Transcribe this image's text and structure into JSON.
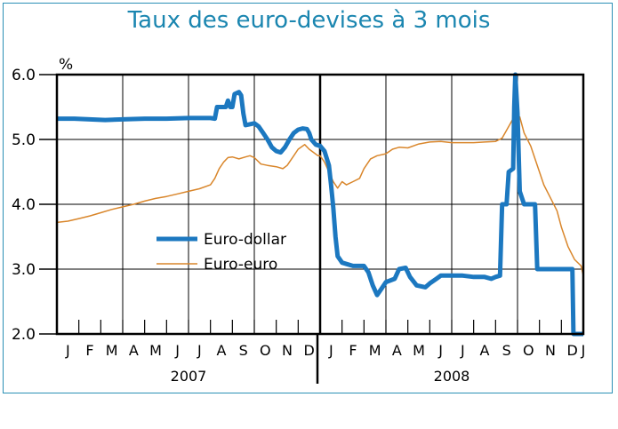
{
  "chart_data": {
    "type": "line",
    "title": "Taux des euro-devises à 3 mois",
    "unit": "%",
    "ylim": [
      2.0,
      6.0
    ],
    "yticks": [
      "2.0",
      "3.0",
      "4.0",
      "5.0",
      "6.0"
    ],
    "xlim": [
      0,
      24
    ],
    "months": [
      "J",
      "F",
      "M",
      "A",
      "M",
      "J",
      "J",
      "A",
      "S",
      "O",
      "N",
      "D",
      "J",
      "F",
      "M",
      "A",
      "M",
      "J",
      "J",
      "A",
      "S",
      "O",
      "N",
      "D",
      "J"
    ],
    "years": [
      "2007",
      "2008"
    ],
    "grid": true,
    "legend_position": "center-left",
    "series": [
      {
        "name": "Euro-dollar",
        "color": "#1c78c0",
        "points": [
          [
            0.0,
            5.32
          ],
          [
            0.8,
            5.32
          ],
          [
            1.5,
            5.31
          ],
          [
            2.2,
            5.3
          ],
          [
            3.0,
            5.31
          ],
          [
            4.0,
            5.32
          ],
          [
            5.0,
            5.32
          ],
          [
            6.0,
            5.33
          ],
          [
            7.0,
            5.33
          ],
          [
            7.2,
            5.32
          ],
          [
            7.3,
            5.5
          ],
          [
            7.7,
            5.5
          ],
          [
            7.8,
            5.6
          ],
          [
            7.9,
            5.5
          ],
          [
            8.0,
            5.5
          ],
          [
            8.1,
            5.7
          ],
          [
            8.3,
            5.73
          ],
          [
            8.4,
            5.68
          ],
          [
            8.5,
            5.4
          ],
          [
            8.6,
            5.22
          ],
          [
            9.0,
            5.25
          ],
          [
            9.2,
            5.2
          ],
          [
            9.4,
            5.1
          ],
          [
            9.6,
            5.0
          ],
          [
            9.8,
            4.88
          ],
          [
            10.0,
            4.82
          ],
          [
            10.2,
            4.8
          ],
          [
            10.4,
            4.88
          ],
          [
            10.6,
            5.0
          ],
          [
            10.8,
            5.1
          ],
          [
            11.0,
            5.15
          ],
          [
            11.2,
            5.17
          ],
          [
            11.4,
            5.16
          ],
          [
            11.5,
            5.1
          ],
          [
            11.6,
            5.0
          ],
          [
            11.8,
            4.92
          ],
          [
            12.0,
            4.9
          ],
          [
            12.2,
            4.82
          ],
          [
            12.4,
            4.6
          ],
          [
            12.5,
            4.3
          ],
          [
            12.6,
            3.95
          ],
          [
            12.7,
            3.5
          ],
          [
            12.8,
            3.2
          ],
          [
            13.0,
            3.1
          ],
          [
            13.2,
            3.08
          ],
          [
            13.5,
            3.05
          ],
          [
            14.0,
            3.05
          ],
          [
            14.2,
            2.95
          ],
          [
            14.4,
            2.75
          ],
          [
            14.6,
            2.6
          ],
          [
            14.8,
            2.7
          ],
          [
            15.0,
            2.8
          ],
          [
            15.4,
            2.85
          ],
          [
            15.6,
            3.0
          ],
          [
            15.9,
            3.02
          ],
          [
            16.1,
            2.88
          ],
          [
            16.4,
            2.75
          ],
          [
            16.8,
            2.72
          ],
          [
            17.0,
            2.78
          ],
          [
            17.3,
            2.85
          ],
          [
            17.5,
            2.9
          ],
          [
            18.0,
            2.9
          ],
          [
            18.5,
            2.9
          ],
          [
            19.0,
            2.88
          ],
          [
            19.5,
            2.88
          ],
          [
            19.8,
            2.85
          ],
          [
            20.0,
            2.88
          ],
          [
            20.2,
            2.9
          ],
          [
            20.3,
            4.0
          ],
          [
            20.5,
            4.0
          ],
          [
            20.6,
            4.5
          ],
          [
            20.8,
            4.55
          ],
          [
            20.85,
            5.5
          ],
          [
            20.9,
            6.0
          ],
          [
            21.0,
            5.4
          ],
          [
            21.1,
            4.2
          ],
          [
            21.3,
            4.0
          ],
          [
            21.6,
            4.0
          ],
          [
            21.8,
            4.0
          ],
          [
            21.9,
            3.0
          ],
          [
            22.5,
            3.0
          ],
          [
            23.0,
            3.0
          ],
          [
            23.5,
            3.0
          ],
          [
            23.55,
            2.0
          ],
          [
            24.0,
            2.0
          ]
        ]
      },
      {
        "name": "Euro-euro",
        "color": "#d9862b",
        "points": [
          [
            0.0,
            3.72
          ],
          [
            0.5,
            3.74
          ],
          [
            1.0,
            3.78
          ],
          [
            1.5,
            3.82
          ],
          [
            2.0,
            3.87
          ],
          [
            2.5,
            3.92
          ],
          [
            3.0,
            3.96
          ],
          [
            3.5,
            4.0
          ],
          [
            4.0,
            4.05
          ],
          [
            4.5,
            4.09
          ],
          [
            5.0,
            4.12
          ],
          [
            5.5,
            4.16
          ],
          [
            6.0,
            4.2
          ],
          [
            6.5,
            4.24
          ],
          [
            7.0,
            4.3
          ],
          [
            7.2,
            4.4
          ],
          [
            7.4,
            4.55
          ],
          [
            7.6,
            4.65
          ],
          [
            7.8,
            4.72
          ],
          [
            8.0,
            4.73
          ],
          [
            8.3,
            4.7
          ],
          [
            8.6,
            4.73
          ],
          [
            8.8,
            4.75
          ],
          [
            9.0,
            4.72
          ],
          [
            9.3,
            4.62
          ],
          [
            9.6,
            4.6
          ],
          [
            10.0,
            4.58
          ],
          [
            10.3,
            4.55
          ],
          [
            10.5,
            4.6
          ],
          [
            10.8,
            4.75
          ],
          [
            11.0,
            4.85
          ],
          [
            11.3,
            4.92
          ],
          [
            11.5,
            4.85
          ],
          [
            11.7,
            4.8
          ],
          [
            11.9,
            4.75
          ],
          [
            12.0,
            4.75
          ],
          [
            12.2,
            4.65
          ],
          [
            12.4,
            4.5
          ],
          [
            12.6,
            4.35
          ],
          [
            12.8,
            4.25
          ],
          [
            13.0,
            4.35
          ],
          [
            13.2,
            4.3
          ],
          [
            13.5,
            4.35
          ],
          [
            13.8,
            4.4
          ],
          [
            14.0,
            4.55
          ],
          [
            14.3,
            4.7
          ],
          [
            14.6,
            4.75
          ],
          [
            15.0,
            4.78
          ],
          [
            15.3,
            4.85
          ],
          [
            15.6,
            4.88
          ],
          [
            16.0,
            4.87
          ],
          [
            16.5,
            4.93
          ],
          [
            17.0,
            4.96
          ],
          [
            17.5,
            4.97
          ],
          [
            18.0,
            4.95
          ],
          [
            18.5,
            4.95
          ],
          [
            19.0,
            4.95
          ],
          [
            19.5,
            4.96
          ],
          [
            20.0,
            4.97
          ],
          [
            20.3,
            5.02
          ],
          [
            20.6,
            5.2
          ],
          [
            20.9,
            5.38
          ],
          [
            21.1,
            5.35
          ],
          [
            21.3,
            5.1
          ],
          [
            21.6,
            4.9
          ],
          [
            21.9,
            4.6
          ],
          [
            22.2,
            4.3
          ],
          [
            22.5,
            4.1
          ],
          [
            22.8,
            3.9
          ],
          [
            23.0,
            3.65
          ],
          [
            23.3,
            3.35
          ],
          [
            23.6,
            3.15
          ],
          [
            23.9,
            3.05
          ],
          [
            24.0,
            2.9
          ]
        ]
      }
    ]
  }
}
